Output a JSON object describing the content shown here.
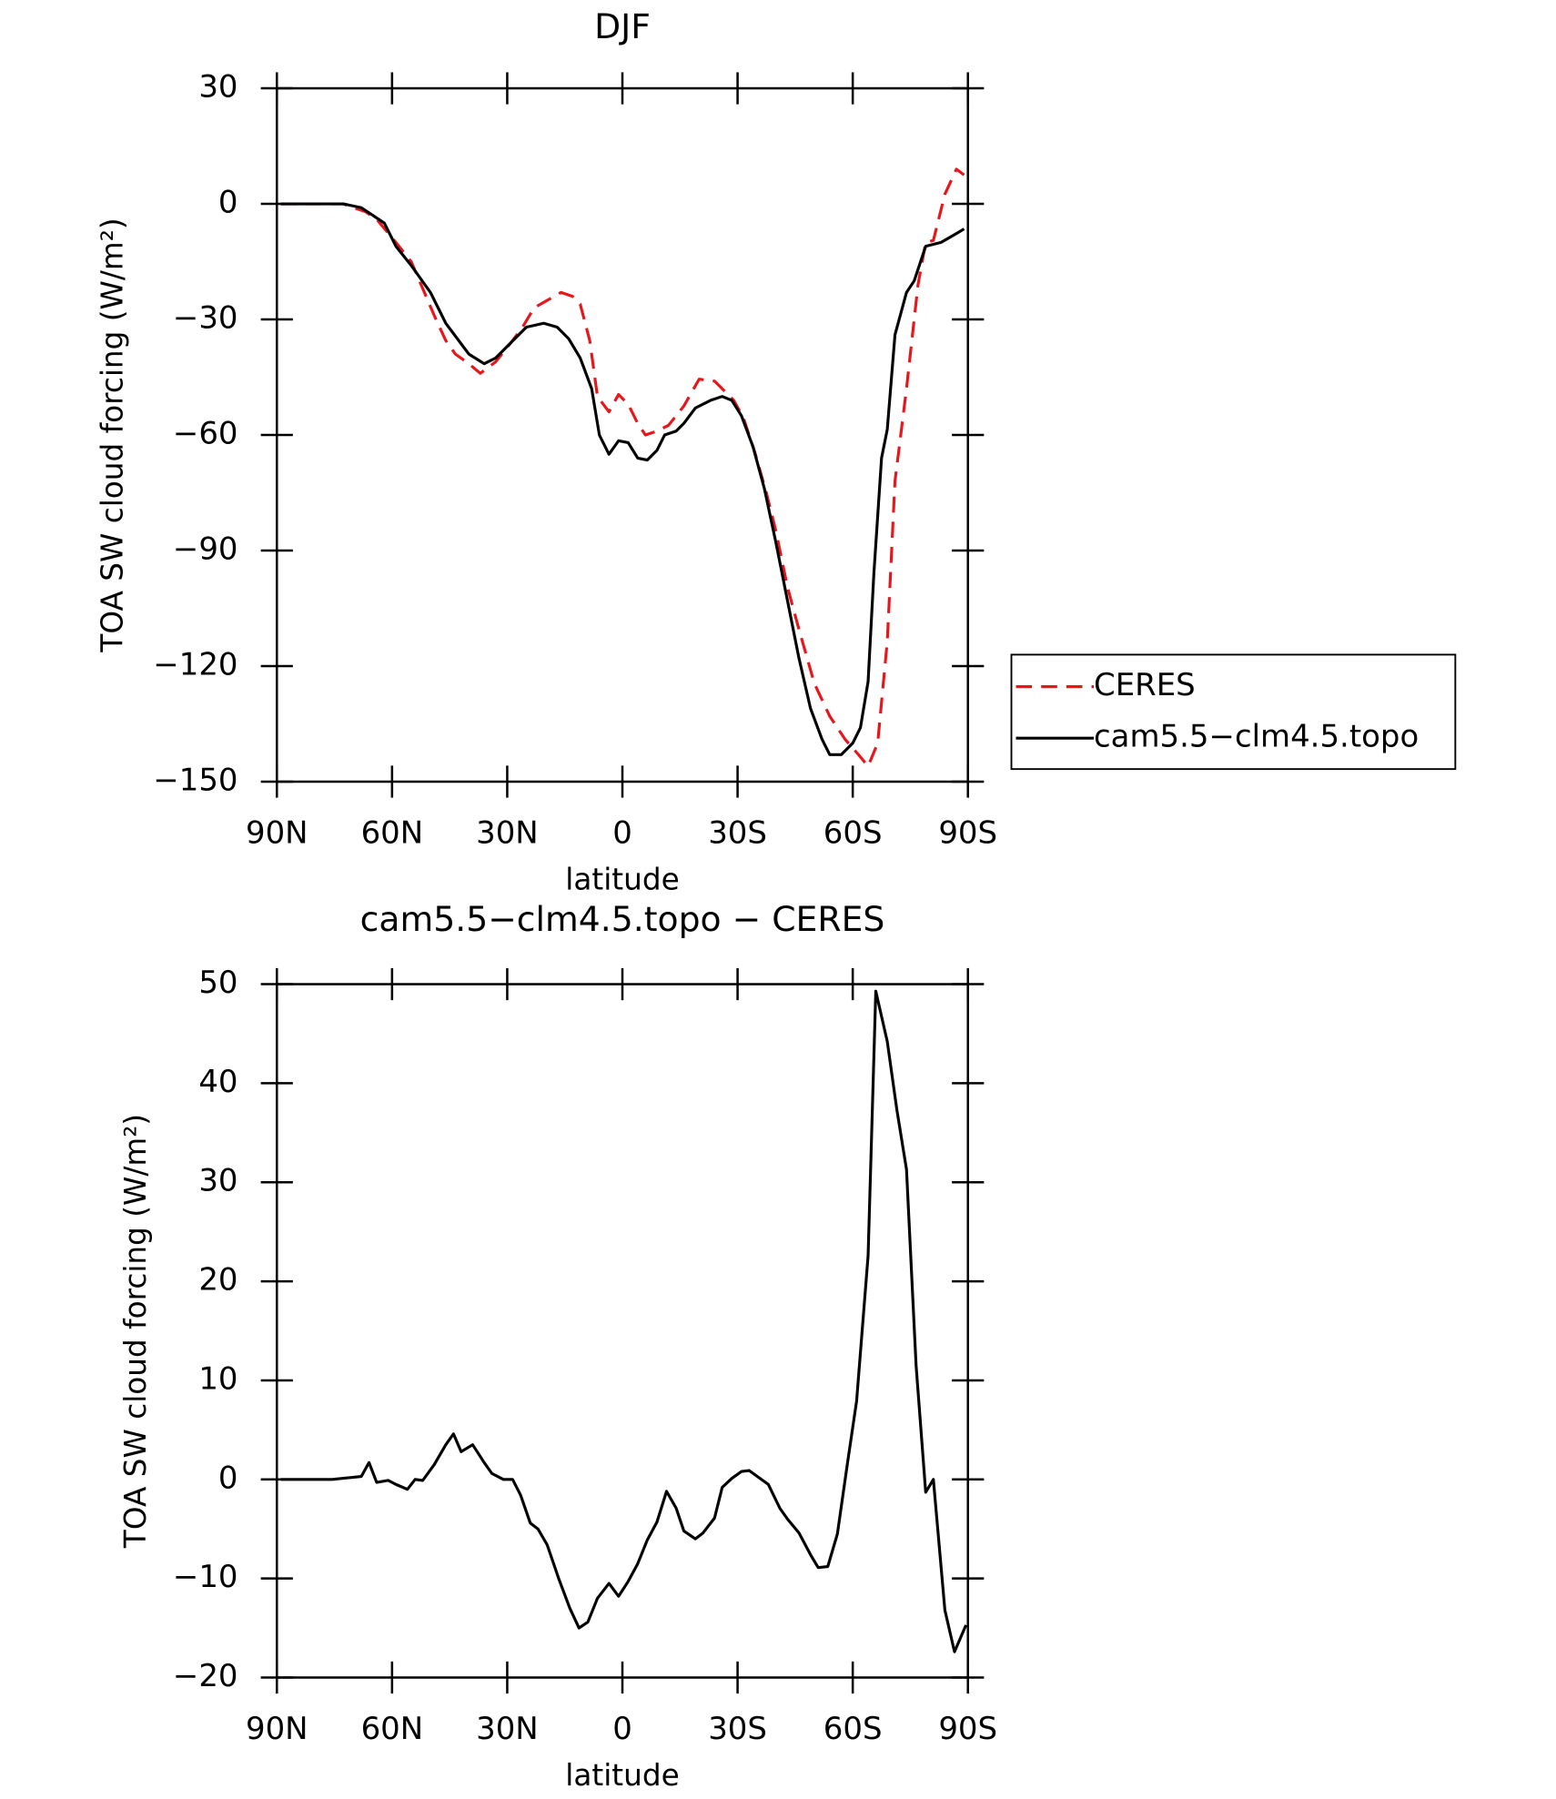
{
  "chart_data": [
    {
      "type": "line",
      "title": "DJF",
      "xlabel": "latitude",
      "ylabel": "TOA SW cloud forcing (W/m²)",
      "xlim": [
        90,
        -90
      ],
      "ylim": [
        -150,
        30
      ],
      "xticks": [
        {
          "value": 90,
          "label": "90N"
        },
        {
          "value": 60,
          "label": "60N"
        },
        {
          "value": 30,
          "label": "30N"
        },
        0,
        {
          "value": -30,
          "label": "30S"
        },
        {
          "value": -60,
          "label": "60S"
        },
        {
          "value": -90,
          "label": "90S"
        }
      ],
      "yticks": [
        {
          "value": -150,
          "label": "−150"
        },
        {
          "value": -120,
          "label": "−120"
        },
        {
          "value": -90,
          "label": "−90"
        },
        {
          "value": -60,
          "label": "−60"
        },
        {
          "value": -30,
          "label": "−30"
        },
        0,
        30
      ],
      "legend": "outside-right",
      "series": [
        {
          "name": "CERES",
          "color": "#e8161b",
          "linestyle": "dashed",
          "x": [
            89,
            72.7,
            70,
            67,
            64,
            59,
            55,
            52,
            49,
            46,
            43.5,
            40,
            37,
            33,
            29,
            26,
            23,
            19.5,
            16,
            13,
            11,
            8.5,
            6.5,
            3.5,
            1,
            -1.5,
            -4,
            -6,
            -9,
            -12,
            -16,
            -20,
            -24,
            -26,
            -29,
            -31.5,
            -34.5,
            -37.5,
            -40,
            -43,
            -46,
            -50,
            -54,
            -58,
            -61.5,
            -64,
            -66.5,
            -69,
            -71,
            -74,
            -77,
            -79,
            -81,
            -84,
            -87,
            -89
          ],
          "values": [
            0,
            0,
            -1,
            -2,
            -4,
            -10,
            -15,
            -22,
            -29,
            -35.5,
            -39,
            -41.5,
            -44,
            -41,
            -36,
            -32,
            -27,
            -25,
            -23,
            -24,
            -26,
            -35.5,
            -50,
            -54,
            -49.5,
            -52,
            -57,
            -60,
            -59,
            -57.5,
            -52.5,
            -45.5,
            -46,
            -48,
            -51,
            -55.5,
            -64.5,
            -75,
            -85,
            -99.5,
            -110.5,
            -124.5,
            -133,
            -139,
            -143,
            -146,
            -140,
            -113.5,
            -72,
            -48,
            -21,
            -10,
            -9.5,
            2.5,
            9,
            7.5
          ]
        },
        {
          "name": "cam5.5−clm4.5.topo",
          "color": "#000000",
          "linestyle": "solid",
          "x": [
            89,
            72.7,
            68,
            65,
            62,
            59,
            55,
            50,
            46,
            43,
            40,
            36,
            33,
            29,
            25,
            20.5,
            17,
            14,
            11,
            8,
            6,
            3.5,
            1,
            -1.5,
            -4,
            -6.5,
            -9,
            -11,
            -14,
            -16,
            -19,
            -23,
            -26,
            -28.5,
            -31,
            -34,
            -37,
            -40,
            -43,
            -46,
            -49,
            -52,
            -54,
            -57,
            -60,
            -62,
            -64,
            -65.5,
            -67.5,
            -69,
            -71,
            -74,
            -76,
            -79,
            -83,
            -86.5,
            -89
          ],
          "values": [
            0,
            0,
            -1,
            -3,
            -5,
            -11,
            -16,
            -23,
            -31,
            -35,
            -39,
            -41.5,
            -40,
            -36,
            -32,
            -31,
            -32,
            -35,
            -40,
            -48,
            -60,
            -65,
            -61.5,
            -62,
            -66,
            -66.5,
            -64,
            -60,
            -59,
            -57,
            -53,
            -51,
            -50,
            -51,
            -55,
            -63,
            -74,
            -88,
            -103,
            -118,
            -131,
            -139,
            -143,
            -143,
            -140,
            -136,
            -124,
            -96,
            -66,
            -58.5,
            -34,
            -23,
            -20,
            -11,
            -10,
            -8,
            -6.5
          ]
        }
      ]
    },
    {
      "type": "line",
      "title": "cam5.5−clm4.5.topo − CERES",
      "xlabel": "latitude",
      "ylabel": "TOA SW cloud forcing (W/m²)",
      "xlim": [
        90,
        -90
      ],
      "ylim": [
        -20,
        50
      ],
      "xticks": [
        {
          "value": 90,
          "label": "90N"
        },
        {
          "value": 60,
          "label": "60N"
        },
        {
          "value": 30,
          "label": "30N"
        },
        0,
        {
          "value": -30,
          "label": "30S"
        },
        {
          "value": -60,
          "label": "60S"
        },
        {
          "value": -90,
          "label": "90S"
        }
      ],
      "yticks": [
        {
          "value": -20,
          "label": "−20"
        },
        {
          "value": -10,
          "label": "−10"
        },
        0,
        10,
        20,
        30,
        40,
        50
      ],
      "series": [
        {
          "color": "#000000",
          "linestyle": "solid",
          "x": [
            89,
            75.6,
            68,
            66,
            64,
            61,
            59,
            56,
            54,
            52,
            49,
            46,
            44,
            42,
            39,
            36,
            34,
            31,
            28.6,
            26.5,
            24,
            22,
            19.6,
            16.6,
            13.7,
            11.3,
            9,
            6.5,
            3.5,
            1,
            -1.5,
            -4,
            -6.5,
            -9,
            -11.5,
            -14,
            -16,
            -19,
            -21,
            -24,
            -26,
            -28.5,
            -31,
            -33,
            -35.5,
            -38,
            -41,
            -43,
            -46,
            -49,
            -51,
            -53.5,
            -56,
            -58.5,
            -61,
            -64,
            -66,
            -69,
            -71.5,
            -74,
            -76.5,
            -79,
            -81,
            -84,
            -86.5,
            -89.5
          ],
          "values": [
            0,
            0,
            0.3,
            1.7,
            -0.3,
            -0.1,
            -0.5,
            -1,
            0,
            -0.1,
            1.5,
            3.5,
            4.6,
            2.8,
            3.5,
            1.7,
            0.6,
            0,
            0,
            -1.6,
            -4.4,
            -5,
            -6.6,
            -10,
            -13,
            -15,
            -14.4,
            -12,
            -10.5,
            -11.8,
            -10.3,
            -8.5,
            -6.1,
            -4.3,
            -1.2,
            -2.9,
            -5.2,
            -6,
            -5.4,
            -3.9,
            -0.8,
            0.1,
            0.8,
            0.9,
            0.2,
            -0.5,
            -2.9,
            -4,
            -5.4,
            -7.6,
            -8.9,
            -8.8,
            -5.5,
            1.3,
            7.9,
            22.6,
            49.3,
            44.2,
            37.3,
            31.3,
            11.5,
            -1.3,
            0,
            -13.2,
            -17.4,
            -14.7
          ]
        }
      ]
    }
  ]
}
